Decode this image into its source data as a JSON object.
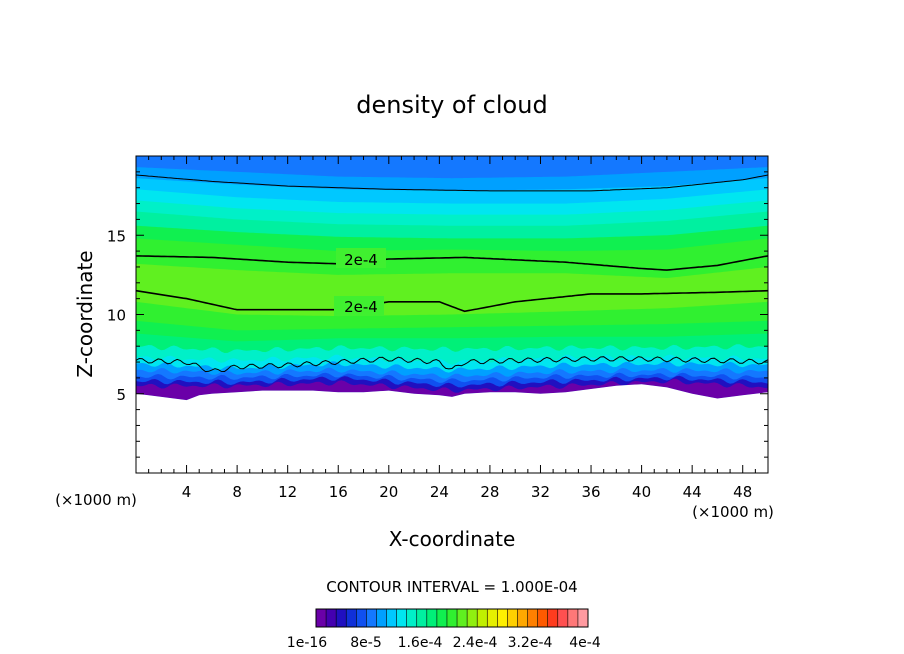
{
  "chart_data": {
    "type": "heatmap",
    "title": "density of cloud",
    "xlabel": "X-coordinate",
    "ylabel": "Z-coordinate",
    "x_unit": "(×1000 m)",
    "y_unit": "(×1000 m)",
    "xlim": [
      0,
      50
    ],
    "ylim": [
      0,
      20
    ],
    "x_ticks": [
      "4",
      "8",
      "12",
      "16",
      "20",
      "24",
      "28",
      "32",
      "36",
      "40",
      "44",
      "48"
    ],
    "y_ticks": [
      "5",
      "10",
      "15"
    ],
    "contour_interval_text": "CONTOUR INTERVAL = 1.000E-04",
    "contour_labels": [
      "2e-4",
      "2e-4"
    ],
    "colorbar_labels": [
      "1e-16",
      "8e-5",
      "1.6e-4",
      "2.4e-4",
      "3.2e-4",
      "4e-4"
    ],
    "colorbar_colors": [
      "#6a00a8",
      "#4400b0",
      "#2010c0",
      "#1030d8",
      "#1050f0",
      "#1478ff",
      "#00a0ff",
      "#00c8ff",
      "#00e6f0",
      "#00f0c8",
      "#00f0a0",
      "#00f078",
      "#10f050",
      "#30f030",
      "#60f020",
      "#90f010",
      "#c0f000",
      "#e6f000",
      "#fff000",
      "#ffd000",
      "#ffa800",
      "#ff8000",
      "#ff5a00",
      "#ff3c1e",
      "#ff5050",
      "#ff7878",
      "#ff9aa0"
    ],
    "grid": false,
    "legend": "bottom-colorbar",
    "contour_lines": [
      {
        "x": [
          0,
          6,
          12,
          20,
          28,
          36,
          42,
          48,
          50
        ],
        "y": [
          18.8,
          18.4,
          18.1,
          17.9,
          17.8,
          17.8,
          18.0,
          18.5,
          18.8
        ]
      },
      {
        "x": [
          0,
          6,
          12,
          16,
          20,
          26,
          34,
          40,
          42,
          46,
          50
        ],
        "y": [
          13.7,
          13.6,
          13.3,
          13.2,
          13.5,
          13.6,
          13.3,
          12.9,
          12.8,
          13.1,
          13.7
        ]
      },
      {
        "x": [
          0,
          4,
          8,
          12,
          16,
          20,
          24,
          26,
          30,
          36,
          40,
          46,
          50
        ],
        "y": [
          11.5,
          11.0,
          10.3,
          10.3,
          10.3,
          10.8,
          10.8,
          10.2,
          10.8,
          11.3,
          11.3,
          11.4,
          11.5
        ]
      },
      {
        "x": [
          0,
          4,
          6,
          8,
          12,
          16,
          20,
          24,
          25,
          26,
          30,
          36,
          40,
          46,
          50
        ],
        "y": [
          7.1,
          7.0,
          6.4,
          6.7,
          6.8,
          7.0,
          7.2,
          7.0,
          6.5,
          7.0,
          7.1,
          7.2,
          7.2,
          7.1,
          7.0
        ]
      }
    ],
    "bands": [
      {
        "level": 0.95,
        "color": "#1478ff",
        "y": [
          20,
          20
        ]
      },
      {
        "level": 0.9,
        "color": "#00a0ff",
        "top": [
          19.3,
          19.0,
          18.7,
          18.6,
          18.7,
          19.0,
          19.3
        ],
        "x": [
          0,
          8,
          16,
          25,
          34,
          42,
          50
        ]
      },
      {
        "level": 0.85,
        "color": "#00c8ff",
        "top": [
          18.6,
          18.2,
          17.9,
          17.8,
          17.9,
          18.1,
          18.6
        ],
        "x": [
          0,
          8,
          16,
          25,
          34,
          42,
          50
        ]
      },
      {
        "level": 0.8,
        "color": "#00e6f0",
        "top": [
          17.9,
          17.4,
          17.1,
          17.0,
          17.0,
          17.3,
          17.9
        ],
        "x": [
          0,
          8,
          16,
          25,
          34,
          42,
          50
        ]
      },
      {
        "level": 0.75,
        "color": "#00f0c8",
        "top": [
          17.2,
          16.7,
          16.4,
          16.3,
          16.3,
          16.6,
          17.2
        ],
        "x": [
          0,
          8,
          16,
          25,
          34,
          42,
          50
        ]
      },
      {
        "level": 0.7,
        "color": "#00f0a0",
        "top": [
          16.5,
          16.0,
          15.7,
          15.6,
          15.6,
          15.9,
          16.5
        ],
        "x": [
          0,
          8,
          16,
          25,
          34,
          42,
          50
        ]
      },
      {
        "level": 0.65,
        "color": "#10f050",
        "top": [
          15.6,
          15.2,
          14.9,
          14.8,
          14.8,
          15.0,
          15.6
        ],
        "x": [
          0,
          8,
          16,
          25,
          34,
          42,
          50
        ]
      },
      {
        "level": 0.6,
        "color": "#30f030",
        "top": [
          14.8,
          14.4,
          14.0,
          14.1,
          14.0,
          14.1,
          14.8
        ],
        "x": [
          0,
          8,
          16,
          25,
          34,
          42,
          50
        ]
      },
      {
        "level": 0.55,
        "color": "#60f020",
        "top": [
          13.2,
          12.8,
          12.5,
          12.6,
          12.6,
          12.3,
          13.0
        ],
        "x": [
          0,
          8,
          16,
          25,
          34,
          42,
          50
        ]
      },
      {
        "level": 0.5,
        "color": "#30f030",
        "top": [
          10.8,
          10.0,
          9.9,
          10.0,
          10.2,
          10.4,
          10.8
        ],
        "x": [
          0,
          8,
          16,
          25,
          34,
          42,
          50
        ]
      },
      {
        "level": 0.45,
        "color": "#10f050",
        "top": [
          9.6,
          9.0,
          9.1,
          9.2,
          9.3,
          9.4,
          9.6
        ],
        "x": [
          0,
          8,
          16,
          25,
          34,
          42,
          50
        ]
      },
      {
        "level": 0.4,
        "color": "#00f078",
        "top": [
          8.8,
          8.3,
          8.5,
          8.5,
          8.6,
          8.6,
          8.8
        ],
        "x": [
          0,
          8,
          16,
          25,
          34,
          42,
          50
        ]
      },
      {
        "level": 0.35,
        "color": "#00f0c8",
        "top": [
          8.0,
          7.7,
          7.9,
          7.8,
          7.9,
          7.9,
          8.0
        ],
        "x": [
          0,
          8,
          16,
          25,
          34,
          42,
          50
        ]
      },
      {
        "level": 0.3,
        "color": "#00e6f0",
        "top": [
          7.3,
          7.1,
          7.3,
          7.0,
          7.3,
          7.3,
          7.2
        ],
        "x": [
          0,
          8,
          16,
          25,
          34,
          42,
          50
        ]
      },
      {
        "level": 0.25,
        "color": "#00a0ff",
        "top": [
          6.9,
          6.6,
          6.9,
          6.5,
          6.8,
          6.9,
          6.8
        ],
        "x": [
          0,
          8,
          16,
          25,
          34,
          42,
          50
        ]
      },
      {
        "level": 0.2,
        "color": "#1478ff",
        "top": [
          6.5,
          6.3,
          6.5,
          6.1,
          6.4,
          6.5,
          6.4
        ],
        "x": [
          0,
          8,
          16,
          25,
          34,
          42,
          50
        ]
      },
      {
        "level": 0.15,
        "color": "#1050f0",
        "top": [
          6.1,
          6.0,
          6.2,
          5.8,
          6.1,
          6.2,
          6.0
        ],
        "x": [
          0,
          8,
          16,
          25,
          34,
          42,
          50
        ]
      },
      {
        "level": 0.1,
        "color": "#2010c0",
        "top": [
          5.8,
          5.7,
          6.0,
          5.5,
          5.8,
          6.0,
          5.7
        ],
        "x": [
          0,
          8,
          16,
          25,
          34,
          42,
          50
        ]
      },
      {
        "level": 0.05,
        "color": "#6a00a8",
        "top": [
          5.5,
          5.5,
          5.7,
          5.2,
          5.5,
          5.8,
          5.4
        ],
        "x": [
          0,
          8,
          16,
          25,
          34,
          42,
          50
        ]
      }
    ],
    "lower_boundary": {
      "x": [
        0,
        1,
        2,
        3,
        4,
        5,
        6,
        8,
        10,
        12,
        14,
        16,
        18,
        20,
        22,
        24,
        25,
        26,
        28,
        30,
        32,
        34,
        36,
        38,
        40,
        42,
        44,
        46,
        48,
        50
      ],
      "y": [
        5.0,
        4.9,
        4.8,
        4.7,
        4.6,
        4.9,
        5.0,
        5.1,
        5.2,
        5.2,
        5.2,
        5.1,
        5.1,
        5.2,
        5.0,
        4.9,
        4.8,
        5.0,
        5.1,
        5.1,
        5.0,
        5.1,
        5.3,
        5.5,
        5.6,
        5.4,
        5.0,
        4.7,
        4.9,
        5.1
      ]
    }
  }
}
